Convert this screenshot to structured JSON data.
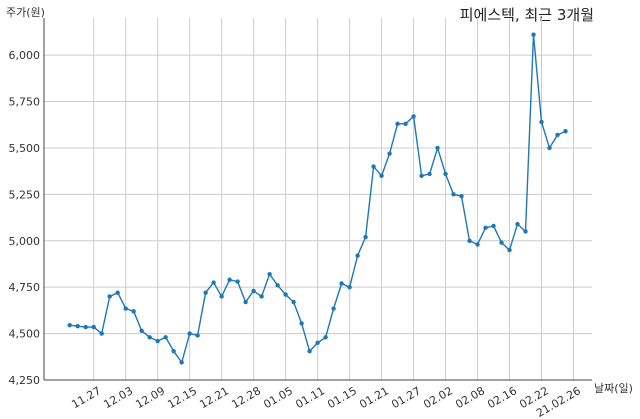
{
  "chart_data": {
    "type": "line",
    "title": "피에스텍, 최근 3개월",
    "xlabel": "날짜(일)",
    "ylabel": "주가(원)",
    "ylim": [
      4250,
      6200
    ],
    "yticks": [
      4250,
      4500,
      4750,
      5000,
      5250,
      5500,
      5750,
      6000
    ],
    "ytick_labels": [
      "4,250",
      "4,500",
      "4,750",
      "5,000",
      "5,250",
      "5,500",
      "5,750",
      "6,000"
    ],
    "xtick_labels": [
      "11.27",
      "12.03",
      "12.09",
      "12.15",
      "12.21",
      "12.28",
      "01.05",
      "01.11",
      "01.15",
      "01.21",
      "01.27",
      "02.02",
      "02.08",
      "02.16",
      "02.22",
      "21.02.26"
    ],
    "xtick_indices": [
      3,
      7,
      11,
      15,
      19,
      23,
      27,
      31,
      35,
      39,
      43,
      47,
      51,
      55,
      59,
      63
    ],
    "grid": true,
    "line_color": "#1f77b4",
    "series": [
      {
        "values": [
          4545,
          4540,
          4535,
          4535,
          4500,
          4700,
          4720,
          4635,
          4620,
          4515,
          4480,
          4460,
          4480,
          4405,
          4345,
          4500,
          4490,
          4720,
          4775,
          4700,
          4790,
          4780,
          4670,
          4730,
          4700,
          4820,
          4760,
          4710,
          4670,
          4555,
          4405,
          4450,
          4480,
          4635,
          4770,
          4750,
          4920,
          5020,
          5400,
          5350,
          5470,
          5630,
          5630,
          5670,
          5350,
          5360,
          5500,
          5360,
          5250,
          5240,
          5000,
          4980,
          5070,
          5080,
          4990,
          4950,
          5090,
          5050,
          6110,
          5640,
          5500,
          5570,
          5590
        ]
      }
    ]
  }
}
